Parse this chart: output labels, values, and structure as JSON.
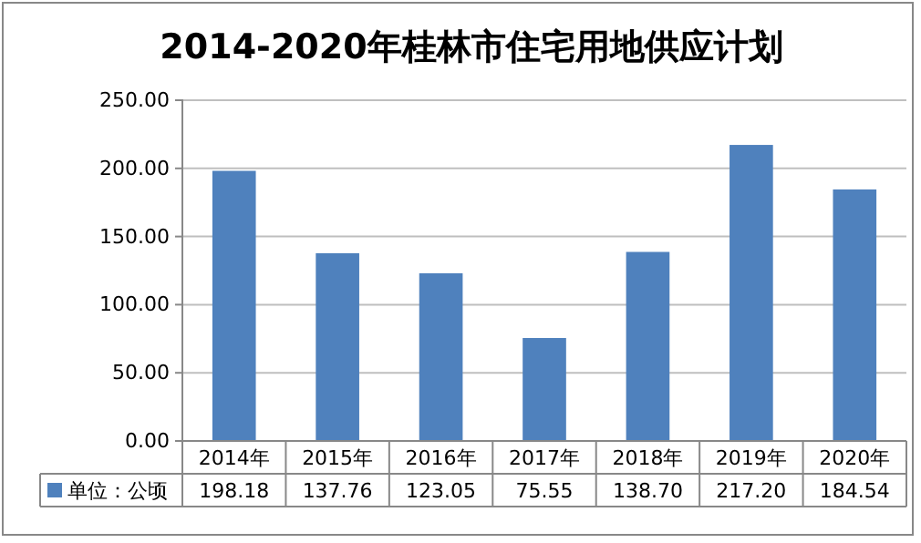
{
  "chart_data": {
    "type": "bar",
    "title": "2014-2020年桂林市住宅用地供应计划",
    "categories": [
      "2014年",
      "2015年",
      "2016年",
      "2017年",
      "2018年",
      "2019年",
      "2020年"
    ],
    "series": [
      {
        "name": "单位：公顷",
        "color": "#4f81bd",
        "values": [
          198.18,
          137.76,
          123.05,
          75.55,
          138.7,
          217.2,
          184.54
        ],
        "value_labels": [
          "198.18",
          "137.76",
          "123.05",
          "75.55",
          "138.70",
          "217.20",
          "184.54"
        ]
      }
    ],
    "ylim": [
      0,
      250
    ],
    "yticks": [
      {
        "value": 0,
        "label": "0.00"
      },
      {
        "value": 50,
        "label": "50.00"
      },
      {
        "value": 100,
        "label": "100.00"
      },
      {
        "value": 150,
        "label": "150.00"
      },
      {
        "value": 200,
        "label": "200.00"
      },
      {
        "value": 250,
        "label": "250.00"
      }
    ],
    "grid": "y"
  }
}
